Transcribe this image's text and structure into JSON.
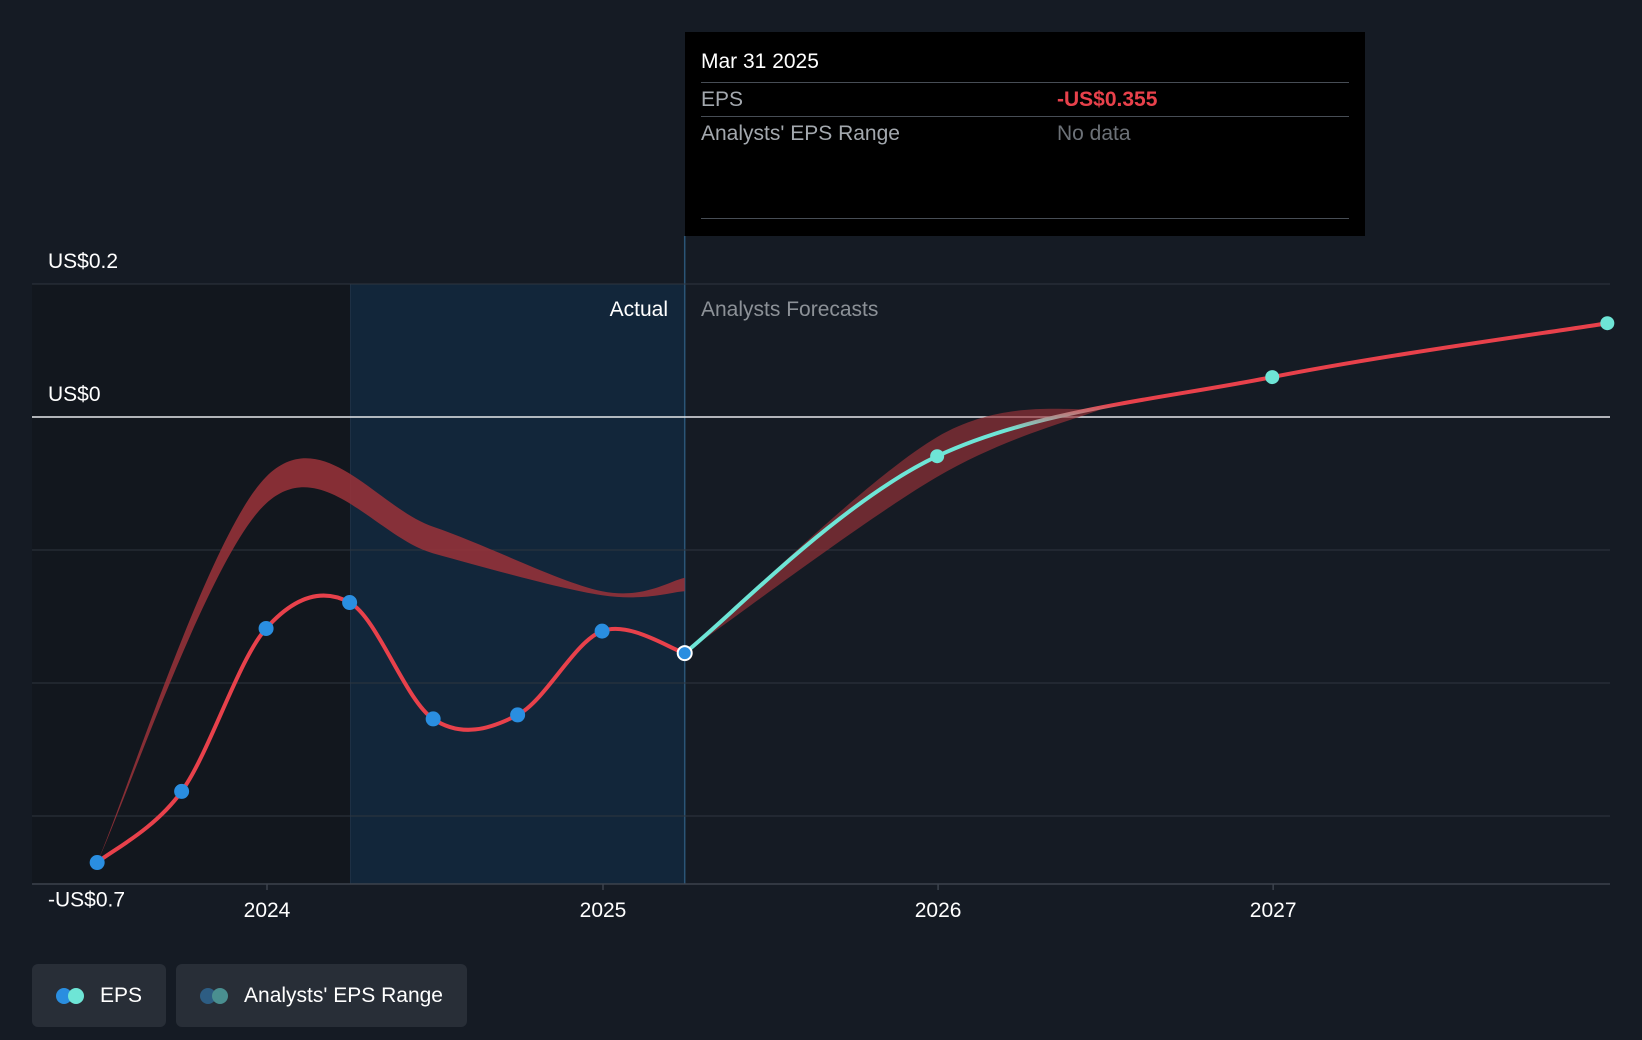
{
  "tooltip": {
    "date": "Mar 31 2025",
    "eps_label": "EPS",
    "eps_value": "-US$0.355",
    "range_label": "Analysts' EPS Range",
    "range_value": "No data"
  },
  "legend": {
    "eps_label": "EPS",
    "range_label": "Analysts' EPS Range"
  },
  "colors": {
    "background": "#151b24",
    "actual_line": "#e8414b",
    "forecast_line": "#6ee5d6",
    "actual_point": "#2a8ee0",
    "range_band": "#9b3239",
    "range_dot": "#3c7486",
    "highlight": "#12263a"
  },
  "chart_data": {
    "type": "line",
    "ylim": [
      -0.7,
      0.2
    ],
    "y_ticks": [
      {
        "value": 0.2,
        "label": "US$0.2"
      },
      {
        "value": 0,
        "label": "US$0"
      },
      {
        "value": -0.2,
        "label": ""
      },
      {
        "value": -0.4,
        "label": ""
      },
      {
        "value": -0.6,
        "label": ""
      },
      {
        "value": -0.7,
        "label": "-US$0.7"
      }
    ],
    "xlim": [
      "2023-06-01",
      "2027-12-31"
    ],
    "x_ticks": [
      {
        "date": "2024-01-01",
        "label": "2024"
      },
      {
        "date": "2025-01-01",
        "label": "2025"
      },
      {
        "date": "2026-01-01",
        "label": "2026"
      },
      {
        "date": "2027-01-01",
        "label": "2027"
      }
    ],
    "actual_label": "Actual",
    "forecast_label": "Analysts Forecasts",
    "highlight_start": "2024-04-01",
    "divider_date": "2025-03-31",
    "series": [
      {
        "name": "EPS",
        "kind": "actual",
        "points": [
          {
            "date": "2023-06-30",
            "value": -0.67
          },
          {
            "date": "2023-09-30",
            "value": -0.563
          },
          {
            "date": "2023-12-31",
            "value": -0.318
          },
          {
            "date": "2024-03-31",
            "value": -0.279
          },
          {
            "date": "2024-06-30",
            "value": -0.454
          },
          {
            "date": "2024-09-30",
            "value": -0.448
          },
          {
            "date": "2024-12-31",
            "value": -0.322
          },
          {
            "date": "2025-03-31",
            "value": -0.355
          }
        ]
      },
      {
        "name": "EPS",
        "kind": "forecast",
        "points": [
          {
            "date": "2025-03-31",
            "value": -0.355
          },
          {
            "date": "2025-12-31",
            "value": -0.059
          },
          {
            "date": "2026-12-31",
            "value": 0.06
          },
          {
            "date": "2027-12-31",
            "value": 0.141
          }
        ]
      }
    ],
    "range_band": {
      "name": "Analysts' EPS Range",
      "upper": [
        {
          "date": "2023-06-30",
          "value": -0.67
        },
        {
          "date": "2023-12-31",
          "value": -0.09
        },
        {
          "date": "2024-06-30",
          "value": -0.165
        },
        {
          "date": "2024-12-31",
          "value": -0.262
        },
        {
          "date": "2025-03-31",
          "value": -0.242
        }
      ],
      "lower": [
        {
          "date": "2023-06-30",
          "value": -0.67
        },
        {
          "date": "2023-12-31",
          "value": -0.13
        },
        {
          "date": "2024-06-30",
          "value": -0.205
        },
        {
          "date": "2024-12-31",
          "value": -0.268
        },
        {
          "date": "2025-03-31",
          "value": -0.262
        }
      ],
      "forecast_upper": [
        {
          "date": "2025-03-31",
          "value": -0.355
        },
        {
          "date": "2025-12-31",
          "value": -0.03
        },
        {
          "date": "2026-06-30",
          "value": 0.013
        }
      ],
      "forecast_lower": [
        {
          "date": "2025-03-31",
          "value": -0.355
        },
        {
          "date": "2025-12-31",
          "value": -0.09
        },
        {
          "date": "2026-06-30",
          "value": 0.013
        }
      ]
    }
  }
}
